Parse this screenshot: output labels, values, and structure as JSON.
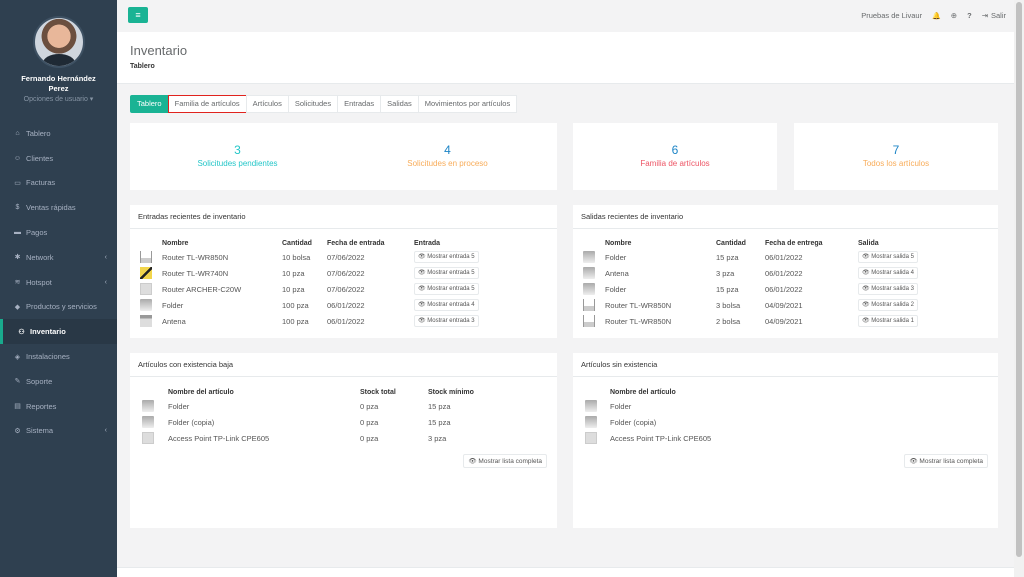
{
  "user": {
    "name": "Fernando Hernández Perez",
    "options": "Opciones de usuario ▾"
  },
  "sidebar": {
    "items": [
      {
        "icon": "⌂",
        "label": "Tablero",
        "chev": ""
      },
      {
        "icon": "☺",
        "label": "Clientes",
        "chev": ""
      },
      {
        "icon": "▭",
        "label": "Facturas",
        "chev": ""
      },
      {
        "icon": "$",
        "label": "Ventas rápidas",
        "chev": ""
      },
      {
        "icon": "▬",
        "label": "Pagos",
        "chev": ""
      },
      {
        "icon": "✱",
        "label": "Network",
        "chev": "‹"
      },
      {
        "icon": "≋",
        "label": "Hotspot",
        "chev": "‹"
      },
      {
        "icon": "◆",
        "label": "Productos y servicios",
        "chev": ""
      },
      {
        "icon": "⚇",
        "label": "Inventario",
        "chev": "",
        "active": true
      },
      {
        "icon": "◈",
        "label": "Instalaciones",
        "chev": ""
      },
      {
        "icon": "✎",
        "label": "Soporte",
        "chev": ""
      },
      {
        "icon": "▤",
        "label": "Reportes",
        "chev": ""
      },
      {
        "icon": "⚙",
        "label": "Sistema",
        "chev": "‹"
      }
    ]
  },
  "topbar": {
    "menu_icon": "≡",
    "account": "Pruebas de Livaur",
    "bell": "🔔",
    "settings": "⊕",
    "help": "?",
    "logout_icon": "⇥",
    "logout": "Salir"
  },
  "header": {
    "title": "Inventario",
    "breadcrumb": "Tablero"
  },
  "tabs": [
    "Tablero",
    "Familia de artículos",
    "Artículos",
    "Solicitudes",
    "Entradas",
    "Salidas",
    "Movimientos por artículos"
  ],
  "stats": [
    {
      "value": "3",
      "label": "Solicitudes pendientes",
      "color": "#23c6c8"
    },
    {
      "value": "4",
      "label": "Solicitudes en proceso",
      "color": "#f8ac59"
    },
    {
      "value": "6",
      "label": "Familia de artículos",
      "color": "#ed5565"
    },
    {
      "value": "7",
      "label": "Todos los artículos",
      "color": "#f8ac59"
    }
  ],
  "entradas": {
    "title": "Entradas recientes de inventario",
    "headers": [
      "Nombre",
      "Cantidad",
      "Fecha de entrada",
      "Entrada"
    ],
    "rows": [
      {
        "thumb": "router",
        "name": "Router TL-WR850N",
        "qty": "10 bolsa",
        "date": "07/06/2022",
        "action": "👁 Mostrar entrada 5"
      },
      {
        "thumb": "router2",
        "name": "Router TL-WR740N",
        "qty": "10 pza",
        "date": "07/06/2022",
        "action": "👁 Mostrar entrada 5"
      },
      {
        "thumb": "ap",
        "name": "Router ARCHER-C20W",
        "qty": "10 pza",
        "date": "07/06/2022",
        "action": "👁 Mostrar entrada 5"
      },
      {
        "thumb": "folder",
        "name": "Folder",
        "qty": "100 pza",
        "date": "06/01/2022",
        "action": "👁 Mostrar entrada 4"
      },
      {
        "thumb": "ant",
        "name": "Antena",
        "qty": "100 pza",
        "date": "06/01/2022",
        "action": "👁 Mostrar entrada 3"
      }
    ]
  },
  "salidas": {
    "title": "Salidas recientes de inventario",
    "headers": [
      "Nombre",
      "Cantidad",
      "Fecha de entrega",
      "Salida"
    ],
    "rows": [
      {
        "thumb": "folder",
        "name": "Folder",
        "qty": "15 pza",
        "date": "06/01/2022",
        "action": "👁 Mostrar salida 5"
      },
      {
        "thumb": "folder",
        "name": "Antena",
        "qty": "3 pza",
        "date": "06/01/2022",
        "action": "👁 Mostrar salida 4"
      },
      {
        "thumb": "folder",
        "name": "Folder",
        "qty": "15 pza",
        "date": "06/01/2022",
        "action": "👁 Mostrar salida 3"
      },
      {
        "thumb": "router",
        "name": "Router TL-WR850N",
        "qty": "3 bolsa",
        "date": "04/09/2021",
        "action": "👁 Mostrar salida 2"
      },
      {
        "thumb": "router",
        "name": "Router TL-WR850N",
        "qty": "2 bolsa",
        "date": "04/09/2021",
        "action": "👁 Mostrar salida 1"
      }
    ]
  },
  "baja": {
    "title": "Artículos con existencia baja",
    "headers": [
      "Nombre del artículo",
      "Stock total",
      "Stock mínimo"
    ],
    "rows": [
      {
        "thumb": "folder",
        "name": "Folder",
        "total": "0 pza",
        "min": "15 pza"
      },
      {
        "thumb": "folder",
        "name": "Folder (copia)",
        "total": "0 pza",
        "min": "15 pza"
      },
      {
        "thumb": "ap",
        "name": "Access Point TP-Link CPE605",
        "total": "0 pza",
        "min": "3 pza"
      }
    ],
    "button": "👁 Mostrar lista completa"
  },
  "sin": {
    "title": "Artículos sin existencia",
    "headers": [
      "Nombre del artículo"
    ],
    "rows": [
      {
        "thumb": "folder",
        "name": "Folder"
      },
      {
        "thumb": "folder",
        "name": "Folder (copia)"
      },
      {
        "thumb": "ap",
        "name": "Access Point TP-Link CPE605"
      }
    ],
    "button": "👁 Mostrar lista completa"
  }
}
